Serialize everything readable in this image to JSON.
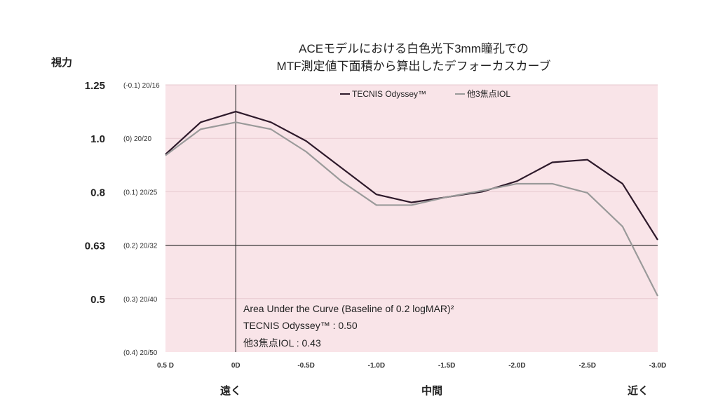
{
  "title": {
    "line1": "ACEモデルにおける白色光下3mm瞳孔での",
    "line2": "MTF測定値下面積から算出したデフォーカスカーブ"
  },
  "y_axis_title": "視力",
  "bottom_labels": {
    "far": "遠く",
    "mid": "中間",
    "near": "近く"
  },
  "auc": {
    "heading": "Area Under the Curve (Baseline of 0.2 logMAR)²",
    "line1": "TECNIS Odyssey™ : 0.50",
    "line2": "他3焦点IOL : 0.43"
  },
  "chart_data": {
    "type": "line",
    "x": [
      0.5,
      0.25,
      0,
      -0.25,
      -0.5,
      -0.75,
      -1.0,
      -1.25,
      -1.5,
      -1.75,
      -2.0,
      -2.25,
      -2.5,
      -2.75,
      -3.0
    ],
    "x_tick_values": [
      0.5,
      0,
      -0.5,
      -1.0,
      -1.5,
      -2.0,
      -2.5,
      -3.0
    ],
    "x_tick_labels": [
      "0.5 D",
      "0D",
      "-0.5D",
      "-1.0D",
      "-1.5D",
      "-2.0D",
      "-2.5D",
      "-3.0D"
    ],
    "xlim": [
      0.5,
      -3.0
    ],
    "ylim": [
      0.4,
      -0.1
    ],
    "y_scale": "logMAR",
    "y_ticks": [
      {
        "value": -0.1,
        "left": "1.25",
        "inner": "(-0.1) 20/16"
      },
      {
        "value": 0.0,
        "left": "1.0",
        "inner": "(0) 20/20"
      },
      {
        "value": 0.1,
        "left": "0.8",
        "inner": "(0.1) 20/25"
      },
      {
        "value": 0.2,
        "left": "0.63",
        "inner": "(0.2) 20/32"
      },
      {
        "value": 0.3,
        "left": "0.5",
        "inner": "(0.3) 20/40"
      },
      {
        "value": 0.4,
        "left": "",
        "inner": "(0.4) 20/50"
      }
    ],
    "baseline": 0.2,
    "series": [
      {
        "name": "TECNIS Odyssey™",
        "color": "#2e1a2b",
        "values": [
          0.03,
          -0.03,
          -0.05,
          -0.03,
          0.005,
          0.055,
          0.105,
          0.12,
          0.11,
          0.1,
          0.08,
          0.045,
          0.04,
          0.085,
          0.19
        ]
      },
      {
        "name": "他3焦点IOL",
        "color": "#9a9a9a",
        "values": [
          0.032,
          -0.017,
          -0.03,
          -0.017,
          0.025,
          0.08,
          0.125,
          0.125,
          0.11,
          0.098,
          0.085,
          0.085,
          0.102,
          0.165,
          0.295
        ]
      }
    ],
    "legend_position": "top-right",
    "grid": true,
    "background_color": "#f9e4e8",
    "grid_color": "#e7c9cf"
  }
}
